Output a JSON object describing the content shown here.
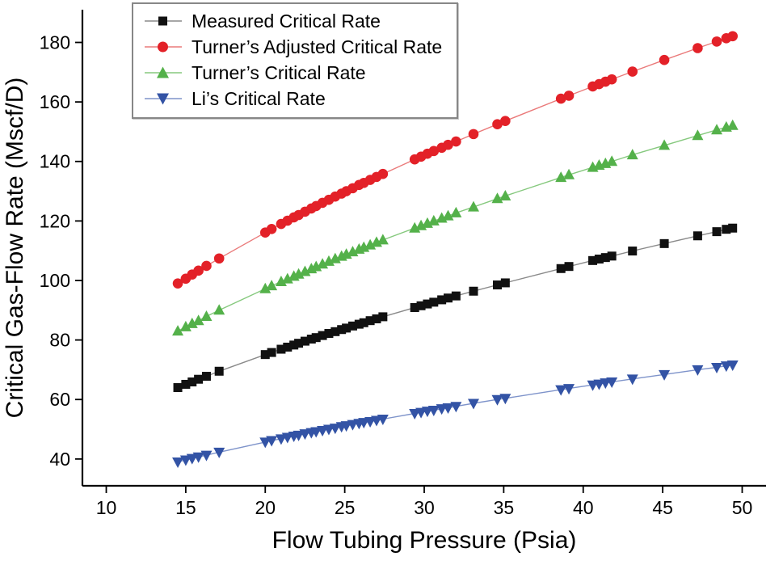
{
  "chart_data": {
    "type": "scatter",
    "title": "",
    "xlabel": "Flow Tubing Pressure (Psia)",
    "ylabel": "Critical Gas-Flow Rate (Mscf/D)",
    "xlim": [
      8.5,
      51.5
    ],
    "ylim": [
      31,
      191
    ],
    "x_ticks": [
      10,
      15,
      20,
      25,
      30,
      35,
      40,
      45,
      50
    ],
    "y_ticks": [
      40,
      60,
      80,
      100,
      120,
      140,
      160,
      180
    ],
    "grid": false,
    "legend_position": "top-left",
    "x": [
      14.5,
      15,
      15.4,
      15.8,
      16.3,
      17.1,
      20,
      20.4,
      21,
      21.4,
      21.8,
      22.1,
      22.5,
      22.9,
      23.2,
      23.6,
      24,
      24.4,
      24.8,
      25.1,
      25.5,
      25.9,
      26.2,
      26.6,
      27,
      27.4,
      29.4,
      29.8,
      30.2,
      30.6,
      31.1,
      31.5,
      32,
      33.1,
      34.6,
      35.1,
      38.6,
      39.1,
      40.6,
      41,
      41.4,
      41.8,
      43.1,
      45.1,
      47.2,
      48.4,
      49,
      49.4
    ],
    "series": [
      {
        "name": "Measured Critical Rate",
        "marker": "square",
        "color": "#111111",
        "line_color": "#8a8a8a",
        "values": [
          64,
          65.1,
          65.9,
          66.8,
          67.8,
          69.5,
          75.1,
          75.8,
          76.9,
          77.6,
          78.3,
          78.9,
          79.6,
          80.3,
          80.8,
          81.5,
          82.2,
          82.8,
          83.5,
          84,
          84.7,
          85.3,
          85.8,
          86.5,
          87.1,
          87.8,
          90.9,
          91.5,
          92.1,
          92.7,
          93.5,
          94.1,
          94.8,
          96.4,
          98.5,
          99.2,
          104,
          104.7,
          106.7,
          107.2,
          107.7,
          108.2,
          109.9,
          112.4,
          115,
          116.4,
          117.2,
          117.6
        ]
      },
      {
        "name": "Turner’s Adjusted Critical Rate",
        "marker": "circle",
        "color": "#e32128",
        "line_color": "#ea7a7a",
        "values": [
          99,
          100.6,
          102,
          103.3,
          104.9,
          107.4,
          116.1,
          117.3,
          119,
          120.1,
          121.2,
          122,
          123.1,
          124.2,
          125,
          126.1,
          127.1,
          128.2,
          129.2,
          130,
          131,
          132.1,
          132.8,
          133.8,
          134.8,
          135.8,
          140.7,
          141.6,
          142.6,
          143.5,
          144.6,
          145.6,
          146.7,
          149.2,
          152.5,
          153.6,
          161.1,
          162.1,
          165.2,
          166,
          166.8,
          167.6,
          170.2,
          174.1,
          178.1,
          180.3,
          181.4,
          182.1
        ]
      },
      {
        "name": "Turner’s Critical Rate",
        "marker": "triangle-up",
        "color": "#54b14a",
        "line_color": "#86c97e",
        "values": [
          83,
          84.4,
          85.5,
          86.5,
          87.9,
          90,
          97.2,
          98.2,
          99.6,
          100.5,
          101.4,
          102.1,
          103,
          103.9,
          104.6,
          105.5,
          106.4,
          107.3,
          108.1,
          108.8,
          109.6,
          110.5,
          111.1,
          111.9,
          112.8,
          113.6,
          117.6,
          118.4,
          119.2,
          120,
          120.9,
          121.7,
          122.7,
          124.7,
          127.5,
          128.4,
          134.6,
          135.5,
          138,
          138.7,
          139.3,
          140,
          142.2,
          145.4,
          148.7,
          150.6,
          151.5,
          152.1
        ]
      },
      {
        "name": "Li’s Critical Rate",
        "marker": "triangle-down",
        "color": "#3353a5",
        "line_color": "#7e93ca",
        "values": [
          39,
          39.7,
          40.2,
          40.7,
          41.3,
          42.3,
          45.7,
          46.2,
          46.8,
          47.3,
          47.7,
          48,
          48.5,
          48.9,
          49.2,
          49.6,
          50,
          50.4,
          50.9,
          51.2,
          51.6,
          52,
          52.3,
          52.6,
          53,
          53.4,
          55.3,
          55.7,
          56.1,
          56.4,
          56.9,
          57.2,
          57.7,
          58.7,
          60,
          60.4,
          63.3,
          63.7,
          64.9,
          65.2,
          65.6,
          65.9,
          66.9,
          68.4,
          70,
          70.8,
          71.3,
          71.6
        ]
      }
    ]
  }
}
